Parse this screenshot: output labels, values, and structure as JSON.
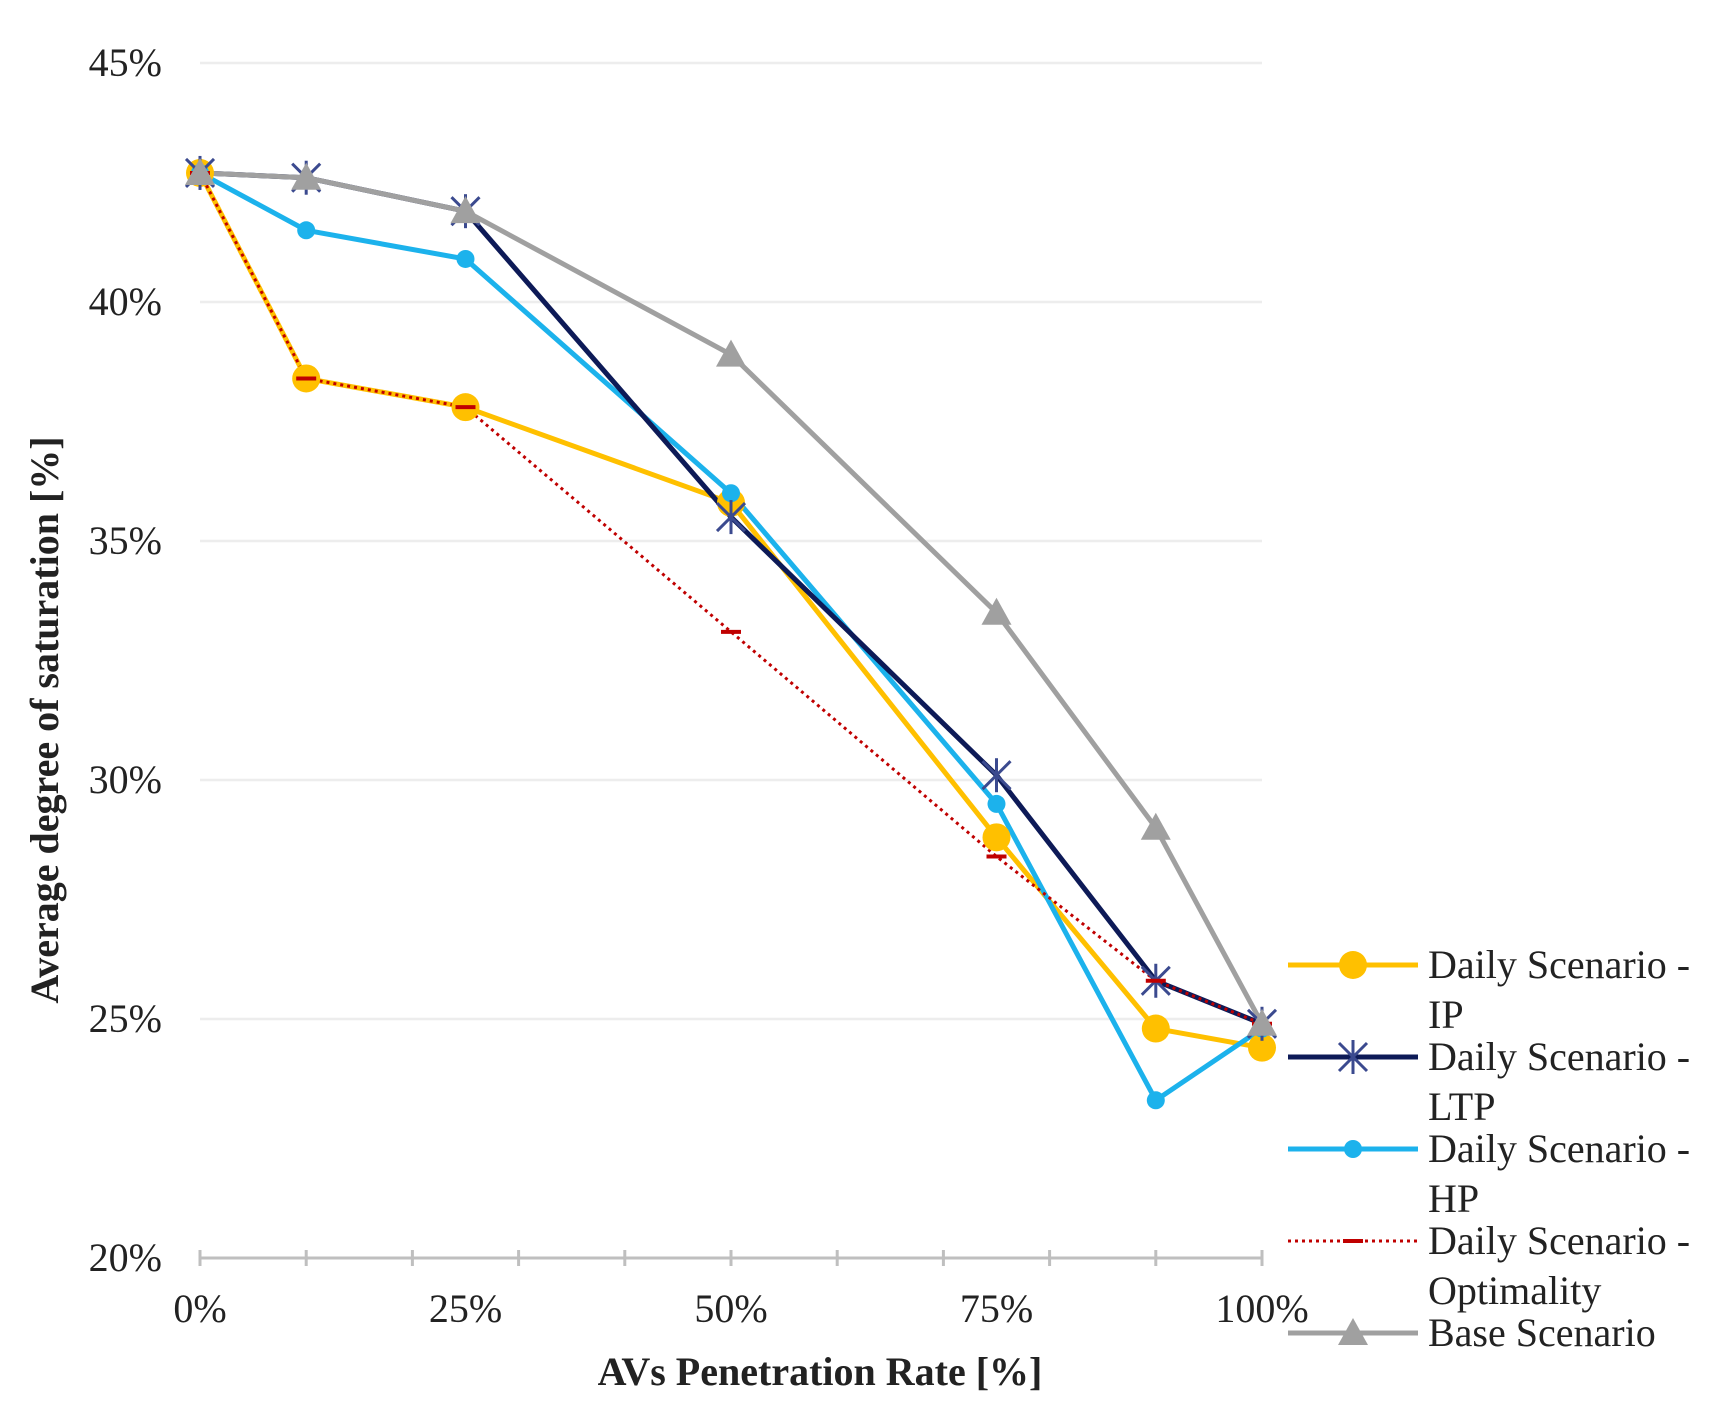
{
  "chart_data": {
    "type": "line",
    "title": "",
    "xlabel": "AVs Penetration Rate [%]",
    "ylabel": "Average degree of saturation [%]",
    "x": [
      0,
      10,
      25,
      50,
      75,
      90,
      100
    ],
    "xlim": [
      0,
      100
    ],
    "ylim": [
      20,
      45
    ],
    "xticks": [
      0,
      25,
      50,
      75,
      100
    ],
    "xtick_labels": [
      "0%",
      "25%",
      "50%",
      "75%",
      "100%"
    ],
    "yticks": [
      20,
      25,
      30,
      35,
      40,
      45
    ],
    "ytick_labels": [
      "20%",
      "25%",
      "30%",
      "35%",
      "40%",
      "45%"
    ],
    "grid": true,
    "legend_position": "right",
    "series": [
      {
        "name": "Daily Scenario - IP",
        "legend_lines": [
          "Daily Scenario -",
          "IP"
        ],
        "color": "#FFC000",
        "marker": "circle-large",
        "line": "solid",
        "values": [
          42.7,
          38.4,
          37.8,
          35.8,
          28.8,
          24.8,
          24.4
        ]
      },
      {
        "name": "Daily Scenario - LTP",
        "legend_lines": [
          "Daily Scenario -",
          "LTP"
        ],
        "color": "#0D1A57",
        "marker": "asterisk",
        "line": "solid",
        "values": [
          42.7,
          42.6,
          41.9,
          35.5,
          30.1,
          25.8,
          24.9
        ]
      },
      {
        "name": "Daily Scenario - HP",
        "legend_lines": [
          "Daily Scenario -",
          "HP"
        ],
        "color": "#1CB2EC",
        "marker": "circle-small",
        "line": "solid",
        "values": [
          42.7,
          41.5,
          40.9,
          36.0,
          29.5,
          23.3,
          24.8
        ]
      },
      {
        "name": "Daily Scenario - Optimality",
        "legend_lines": [
          "Daily Scenario -",
          "Optimality"
        ],
        "color": "#C00000",
        "marker": "dash",
        "line": "dotted",
        "values": [
          42.7,
          38.4,
          37.8,
          33.1,
          28.4,
          25.8,
          24.9
        ]
      },
      {
        "name": "Base Scenario",
        "legend_lines": [
          "Base Scenario"
        ],
        "color": "#A0A0A0",
        "marker": "triangle",
        "line": "solid",
        "values": [
          42.7,
          42.6,
          41.9,
          38.9,
          33.5,
          29.0,
          24.9
        ]
      }
    ]
  }
}
